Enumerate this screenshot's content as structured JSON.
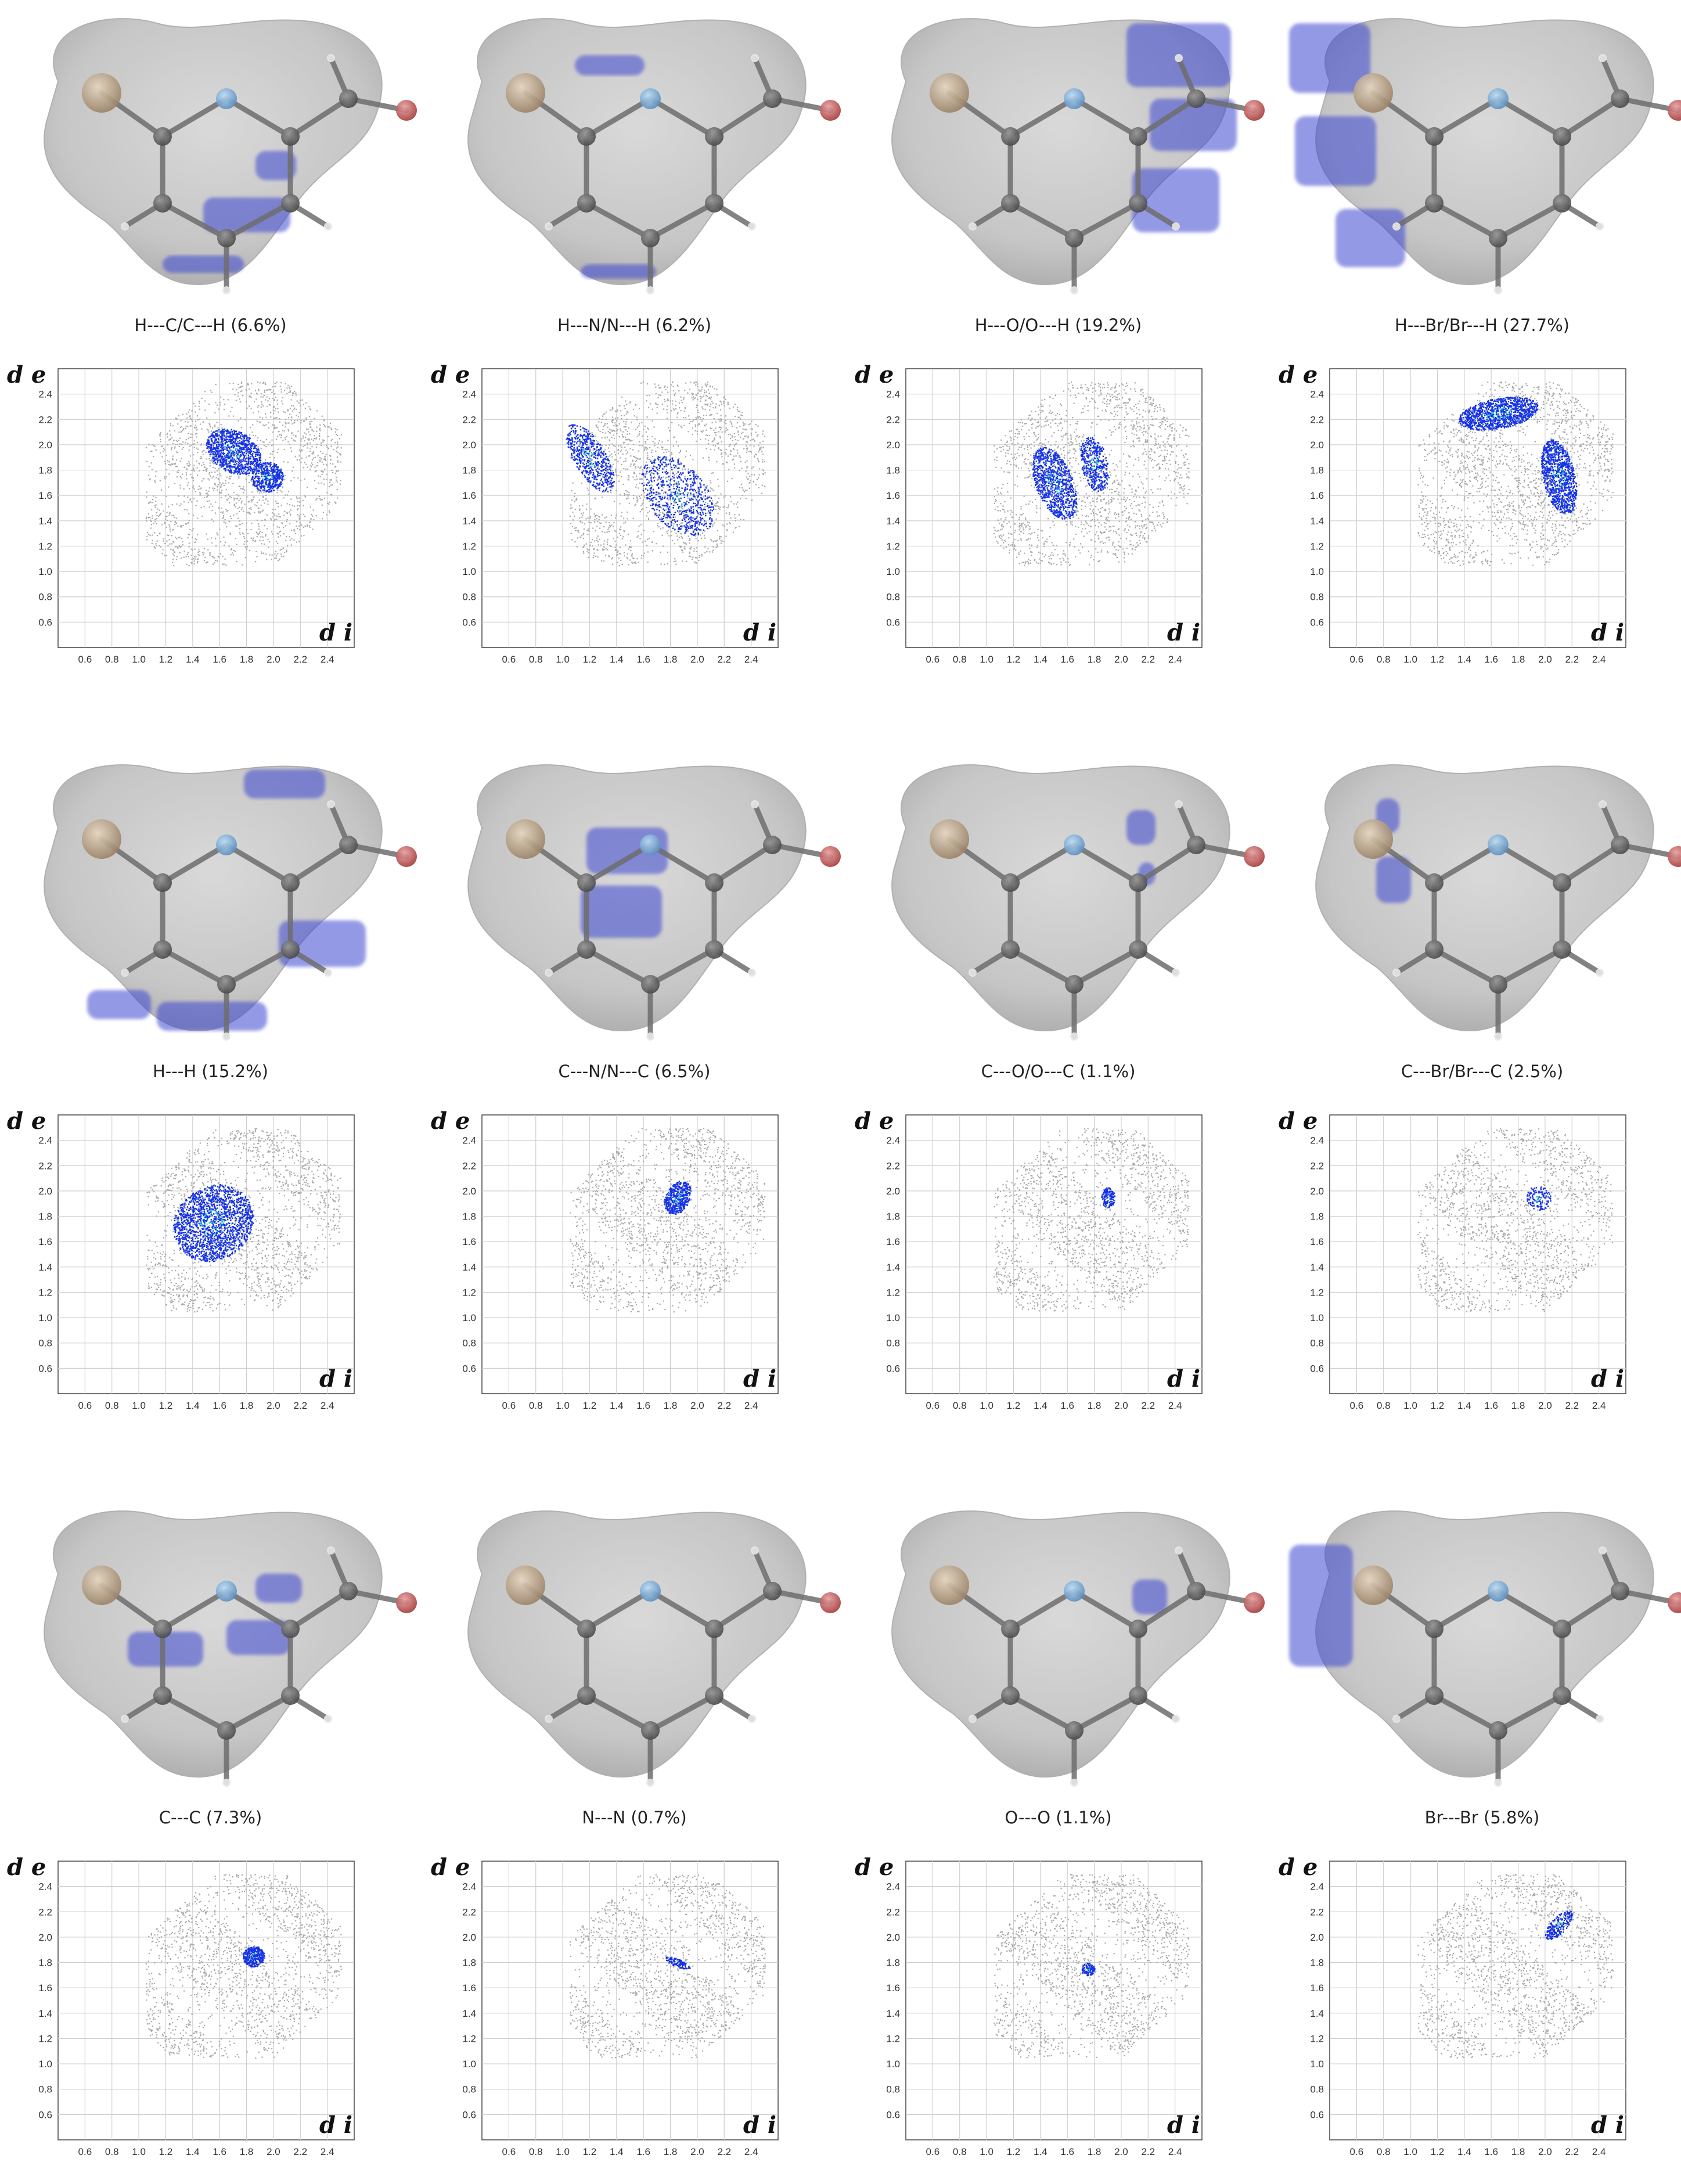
{
  "figure": {
    "layout": {
      "rows": 3,
      "columns": 4
    },
    "fingerprint_axes": {
      "x_label": "d i",
      "y_label": "d e",
      "x_ticks": [
        "0.6",
        "0.8",
        "1.0",
        "1.2",
        "1.4",
        "1.6",
        "1.8",
        "2.0",
        "2.2",
        "2.4"
      ],
      "y_ticks": [
        "2.4",
        "2.2",
        "2.0",
        "1.8",
        "1.6",
        "1.4",
        "1.2",
        "1.0",
        "0.8",
        "0.6"
      ],
      "range": [
        0.4,
        2.6
      ]
    },
    "colors": {
      "surface": "#c8c8c8",
      "highlight": "#3c46d2",
      "fingerprint_gray": "#a8a8a8",
      "fingerprint_blue": "#1432e6"
    },
    "panels": [
      {
        "caption": "H---C/C---H (6.6%)",
        "contact": "H-C"
      },
      {
        "caption": "H---N/N---H (6.2%)",
        "contact": "H-N"
      },
      {
        "caption": "H---O/O---H (19.2%)",
        "contact": "H-O"
      },
      {
        "caption": "H---Br/Br---H (27.7%)",
        "contact": "H-Br"
      },
      {
        "caption": "H---H (15.2%)",
        "contact": "H-H"
      },
      {
        "caption": "C---N/N---C (6.5%)",
        "contact": "C-N"
      },
      {
        "caption": "C---O/O---C (1.1%)",
        "contact": "C-O"
      },
      {
        "caption": "C---Br/Br---C (2.5%)",
        "contact": "C-Br"
      },
      {
        "caption": "C---C (7.3%)",
        "contact": "C-C"
      },
      {
        "caption": "N---N (0.7%)",
        "contact": "N-N"
      },
      {
        "caption": "O---O (1.1%)",
        "contact": "O-O"
      },
      {
        "caption": "Br---Br (5.8%)",
        "contact": "Br-Br"
      }
    ]
  },
  "chart_data": [
    {
      "type": "scatter",
      "title": "H---C/C---H (6.6%)",
      "xlabel": "d i",
      "ylabel": "d e",
      "xlim": [
        0.4,
        2.6
      ],
      "ylim": [
        0.4,
        2.6
      ]
    },
    {
      "type": "scatter",
      "title": "H---N/N---H (6.2%)",
      "xlabel": "d i",
      "ylabel": "d e",
      "xlim": [
        0.4,
        2.6
      ],
      "ylim": [
        0.4,
        2.6
      ]
    },
    {
      "type": "scatter",
      "title": "H---O/O---H (19.2%)",
      "xlabel": "d i",
      "ylabel": "d e",
      "xlim": [
        0.4,
        2.6
      ],
      "ylim": [
        0.4,
        2.6
      ]
    },
    {
      "type": "scatter",
      "title": "H---Br/Br---H (27.7%)",
      "xlabel": "d i",
      "ylabel": "d e",
      "xlim": [
        0.4,
        2.6
      ],
      "ylim": [
        0.4,
        2.6
      ]
    },
    {
      "type": "scatter",
      "title": "H---H (15.2%)",
      "xlabel": "d i",
      "ylabel": "d e",
      "xlim": [
        0.4,
        2.6
      ],
      "ylim": [
        0.4,
        2.6
      ]
    },
    {
      "type": "scatter",
      "title": "C---N/N---C (6.5%)",
      "xlabel": "d i",
      "ylabel": "d e",
      "xlim": [
        0.4,
        2.6
      ],
      "ylim": [
        0.4,
        2.6
      ]
    },
    {
      "type": "scatter",
      "title": "C---O/O---C (1.1%)",
      "xlabel": "d i",
      "ylabel": "d e",
      "xlim": [
        0.4,
        2.6
      ],
      "ylim": [
        0.4,
        2.6
      ]
    },
    {
      "type": "scatter",
      "title": "C---Br/Br---C (2.5%)",
      "xlabel": "d i",
      "ylabel": "d e",
      "xlim": [
        0.4,
        2.6
      ],
      "ylim": [
        0.4,
        2.6
      ]
    },
    {
      "type": "scatter",
      "title": "C---C (7.3%)",
      "xlabel": "d i",
      "ylabel": "d e",
      "xlim": [
        0.4,
        2.6
      ],
      "ylim": [
        0.4,
        2.6
      ]
    },
    {
      "type": "scatter",
      "title": "N---N (0.7%)",
      "xlabel": "d i",
      "ylabel": "d e",
      "xlim": [
        0.4,
        2.6
      ],
      "ylim": [
        0.4,
        2.6
      ]
    },
    {
      "type": "scatter",
      "title": "O---O (1.1%)",
      "xlabel": "d i",
      "ylabel": "d e",
      "xlim": [
        0.4,
        2.6
      ],
      "ylim": [
        0.4,
        2.6
      ]
    },
    {
      "type": "scatter",
      "title": "Br---Br (5.8%)",
      "xlabel": "d i",
      "ylabel": "d e",
      "xlim": [
        0.4,
        2.6
      ],
      "ylim": [
        0.4,
        2.6
      ]
    }
  ]
}
